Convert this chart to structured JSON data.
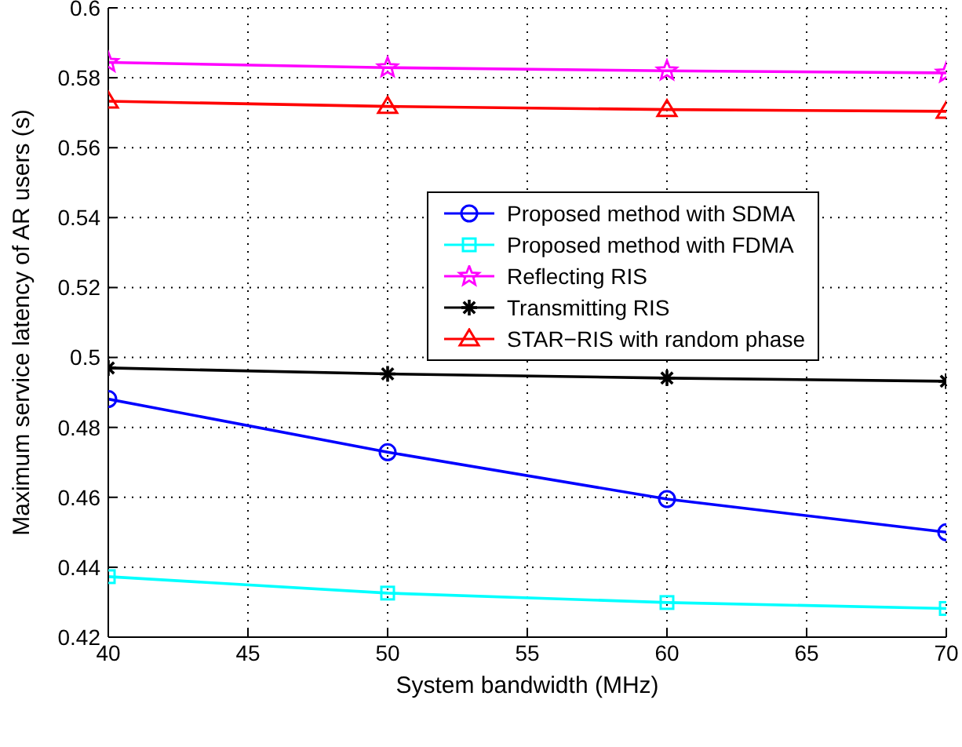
{
  "chart_data": {
    "type": "line",
    "xlabel": "System bandwidth (MHz)",
    "ylabel": "Maximum service latency of AR users (s)",
    "x": [
      40,
      50,
      60,
      70
    ],
    "xlim": [
      40,
      70
    ],
    "xticks": [
      40,
      45,
      50,
      55,
      60,
      65,
      70
    ],
    "ylim": [
      0.42,
      0.6
    ],
    "yticks": [
      0.42,
      0.44,
      0.46,
      0.48,
      0.5,
      0.52,
      0.54,
      0.56,
      0.58,
      0.6
    ],
    "grid": true,
    "legend": "right",
    "line_style": "solid",
    "series": [
      {
        "name": "Proposed method with SDMA",
        "color": "#0000ff",
        "marker": "circle",
        "values": [
          0.4881,
          0.4729,
          0.4595,
          0.45
        ]
      },
      {
        "name": "Proposed method with FDMA",
        "color": "#00ffff",
        "marker": "square",
        "values": [
          0.4373,
          0.4326,
          0.4299,
          0.4282
        ]
      },
      {
        "name": "Reflecting RIS",
        "color": "#ff00ff",
        "marker": "star",
        "values": [
          0.5844,
          0.5829,
          0.582,
          0.5814
        ]
      },
      {
        "name": "Transmitting RIS",
        "color": "#000000",
        "marker": "cross",
        "values": [
          0.497,
          0.4953,
          0.4941,
          0.4932
        ]
      },
      {
        "name": "STAR−RIS with random phase",
        "color": "#ff0000",
        "marker": "triangle",
        "values": [
          0.5733,
          0.5718,
          0.5709,
          0.5704
        ]
      }
    ]
  }
}
